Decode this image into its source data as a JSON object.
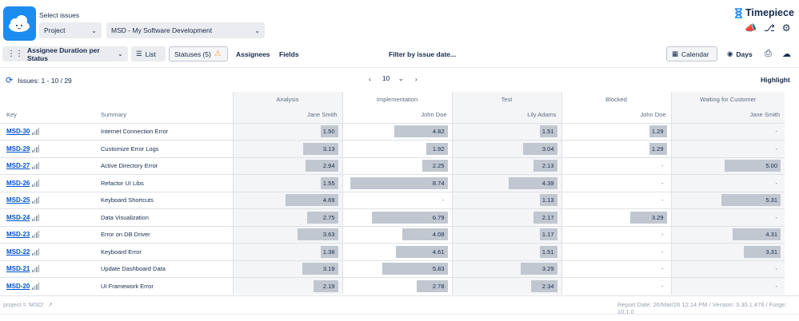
{
  "header": {
    "select_label": "Select issues",
    "scope_dropdown": "Project",
    "project_dropdown": "MSD - My Software Development",
    "brand": "Timepiece"
  },
  "toolbar": {
    "report_type": "Assignee Duration per Status",
    "list": "List",
    "statuses": "Statuses (5)",
    "assignees": "Assignees",
    "fields": "Fields",
    "filter_date": "Filter by issue date...",
    "calendar": "Calendar",
    "days": "Days"
  },
  "issues_count": "Issues: 1 - 10 / 29",
  "pager": {
    "page_size": "10"
  },
  "highlight": "Highlight",
  "table": {
    "key_header": "Key",
    "summary_header": "Summary",
    "statuses": [
      {
        "name": "Analysis",
        "assignee": "Jane Smith"
      },
      {
        "name": "Implementation",
        "assignee": "John Doe"
      },
      {
        "name": "Test",
        "assignee": "Lily Adams"
      },
      {
        "name": "Blocked",
        "assignee": "John Doe"
      },
      {
        "name": "Waiting for Customer",
        "assignee": "Jane Smith"
      }
    ],
    "rows": [
      {
        "key": "MSD-30",
        "summary": "Internet Connection Error",
        "values": [
          "1.50",
          "4.82",
          "1.51",
          "1.29",
          "-"
        ]
      },
      {
        "key": "MSD-29",
        "summary": "Customize Error Logs",
        "values": [
          "3.13",
          "1.92",
          "3.04",
          "1.29",
          "-"
        ]
      },
      {
        "key": "MSD-27",
        "summary": "Active Directory Error",
        "values": [
          "2.94",
          "2.25",
          "2.13",
          "-",
          "5.00"
        ]
      },
      {
        "key": "MSD-26",
        "summary": "Refactor UI Libs",
        "values": [
          "1.55",
          "8.74",
          "4.39",
          "-",
          "-"
        ]
      },
      {
        "key": "MSD-25",
        "summary": "Keyboard Shortcuts",
        "values": [
          "4.69",
          "-",
          "1.13",
          "-",
          "5.31"
        ]
      },
      {
        "key": "MSD-24",
        "summary": "Data Visualization",
        "values": [
          "2.75",
          "6.79",
          "2.17",
          "3.29",
          "-"
        ]
      },
      {
        "key": "MSD-23",
        "summary": "Error on DB Driver",
        "values": [
          "3.63",
          "4.08",
          "1.17",
          "-",
          "4.31"
        ]
      },
      {
        "key": "MSD-22",
        "summary": "Keyboard Error",
        "values": [
          "1.38",
          "4.61",
          "1.51",
          "-",
          "3.31"
        ]
      },
      {
        "key": "MSD-21",
        "summary": "Update Dashboard Data",
        "values": [
          "3.19",
          "5.83",
          "3.29",
          "-",
          "-"
        ]
      },
      {
        "key": "MSD-20",
        "summary": "UI Framework Error",
        "values": [
          "2.19",
          "2.78",
          "2.34",
          "-",
          "-"
        ]
      }
    ]
  },
  "footer": {
    "jql": "project = 'MSD'",
    "report_info": "Report Date: 26/Mar/26 12:14 PM / Version: 3.30.1.478 / Forge: 10.1.0"
  },
  "colors": {
    "accent": "#0052cc",
    "bar_fill": "#c1c7d0",
    "warning": "#ff991f",
    "logo_bg": "#1d8cf0"
  }
}
